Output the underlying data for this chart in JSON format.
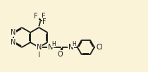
{
  "bg": "#faf3d8",
  "bc": "#1a1a1a",
  "lw": 1.3,
  "fs": 7.0,
  "fs_sub": 5.5,
  "fig_w": 2.1,
  "fig_h": 1.02,
  "dpi": 100,
  "xlim": [
    0.0,
    10.5
  ],
  "ylim": [
    0.5,
    5.5
  ],
  "bx": 1.55,
  "by": 2.9,
  "br": 0.7
}
